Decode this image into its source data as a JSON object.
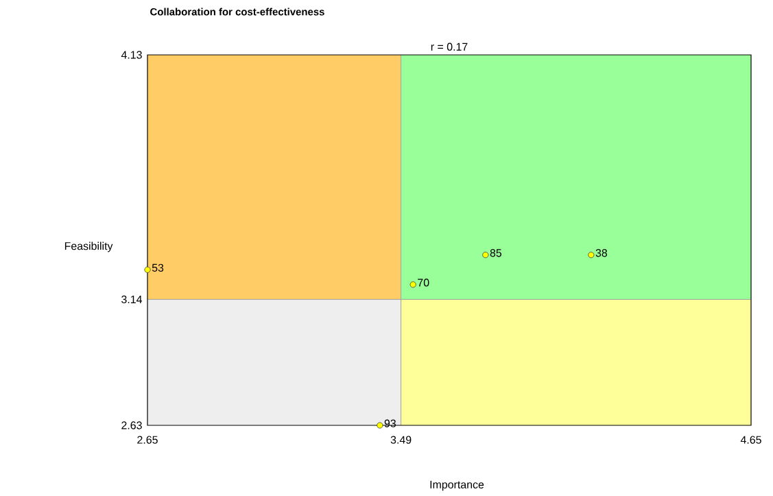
{
  "chart_data": {
    "type": "scatter",
    "title": "Collaboration for cost-effectiveness",
    "xlabel": "Importance",
    "ylabel": "Feasibility",
    "x": [
      2.65,
      3.77,
      4.12,
      3.53,
      3.42
    ],
    "series": [
      {
        "type": "area",
        "color": "#ffcc66",
        "x": [
          2.65,
          3.49
        ],
        "values": [
          4.13,
          4.13
        ]
      },
      {
        "type": "area",
        "color": "#eeeeee",
        "x": [
          2.65,
          3.49
        ],
        "values": [
          3.14,
          3.14
        ]
      },
      {
        "type": "area",
        "color": "#99ff99",
        "x": [
          3.49,
          4.65
        ],
        "values": [
          4.13,
          4.13
        ]
      },
      {
        "type": "area",
        "color": "#ffff99",
        "x": [
          3.49,
          4.65
        ],
        "values": [
          3.14,
          3.14
        ]
      },
      {
        "color": "#ffff00",
        "values": [
          3.26,
          3.32,
          3.32,
          3.2,
          2.63
        ]
      }
    ],
    "xlim": [
      2.65,
      4.65
    ],
    "ylim": [
      2.63,
      4.13
    ],
    "xticks": [
      2.65,
      3.49,
      4.65
    ],
    "yticks": [
      2.63,
      3.14,
      4.13
    ],
    "grid": false,
    "ref_lines": [
      {
        "axis": "x",
        "value": 3.49,
        "color": "#a0a0a0"
      },
      {
        "axis": "y",
        "value": 3.14,
        "color": "#a0a0a0"
      }
    ],
    "annotations": [
      "r = 0.17",
      {
        "text": "53",
        "x": 2.65,
        "y": 3.26
      },
      {
        "text": "85",
        "x": 3.77,
        "y": 3.32
      },
      {
        "text": "38",
        "x": 4.12,
        "y": 3.32
      },
      {
        "text": "70",
        "x": 3.53,
        "y": 3.2
      },
      {
        "text": "93",
        "x": 3.42,
        "y": 2.63
      }
    ]
  }
}
